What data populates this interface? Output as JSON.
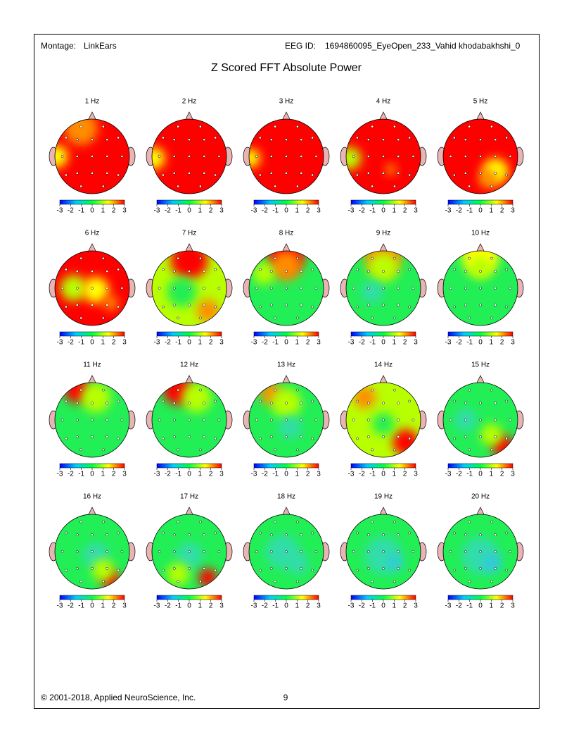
{
  "header": {
    "montage_label": "Montage:",
    "montage": "LinkEars",
    "eeg_id_label": "EEG ID:",
    "eeg_id": "1694860095_EyeOpen_233_Vahid khodabakhshi_0"
  },
  "title": "Z Scored FFT Absolute Power",
  "maps": [
    {
      "label": "1 Hz"
    },
    {
      "label": "2 Hz"
    },
    {
      "label": "3 Hz"
    },
    {
      "label": "4 Hz"
    },
    {
      "label": "5 Hz"
    },
    {
      "label": "6 Hz"
    },
    {
      "label": "7 Hz"
    },
    {
      "label": "8 Hz"
    },
    {
      "label": "9 Hz"
    },
    {
      "label": "10 Hz"
    },
    {
      "label": "11 Hz"
    },
    {
      "label": "12 Hz"
    },
    {
      "label": "13 Hz"
    },
    {
      "label": "14 Hz"
    },
    {
      "label": "15 Hz"
    },
    {
      "label": "16 Hz"
    },
    {
      "label": "17 Hz"
    },
    {
      "label": "18 Hz"
    },
    {
      "label": "19 Hz"
    },
    {
      "label": "20 Hz"
    }
  ],
  "colorbar": {
    "ticks": [
      -3,
      -2,
      -1,
      0,
      1,
      2,
      3
    ]
  },
  "footer": {
    "copyright": "© 2001-2018, Applied NeuroScience, Inc.",
    "page": "9"
  }
}
